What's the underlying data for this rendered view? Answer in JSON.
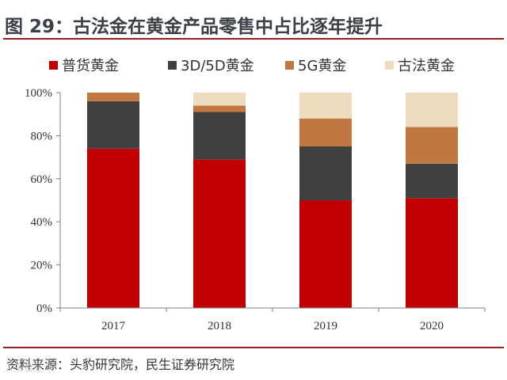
{
  "header": {
    "title": "图 29：古法金在黄金产品零售中占比逐年提升"
  },
  "footer": {
    "source": "资料来源：头豹研究院，民生证券研究院",
    "watermark": "人工智能"
  },
  "chart_data": {
    "type": "bar",
    "stacked": true,
    "categories": [
      "2017",
      "2018",
      "2019",
      "2020"
    ],
    "series": [
      {
        "name": "普货黄金",
        "color": "#c00000",
        "values": [
          74,
          69,
          50,
          51
        ]
      },
      {
        "name": "3D/5D黄金",
        "color": "#404040",
        "values": [
          22,
          22,
          25,
          16
        ]
      },
      {
        "name": "5G黄金",
        "color": "#c07840",
        "values": [
          4,
          3,
          13,
          17
        ]
      },
      {
        "name": "古法黄金",
        "color": "#eddcbd",
        "values": [
          0,
          6,
          12,
          16
        ]
      }
    ],
    "yticks": [
      "0%",
      "20%",
      "40%",
      "60%",
      "80%",
      "100%"
    ],
    "ylim": [
      0,
      100
    ],
    "legend_position": "top",
    "grid": false
  }
}
